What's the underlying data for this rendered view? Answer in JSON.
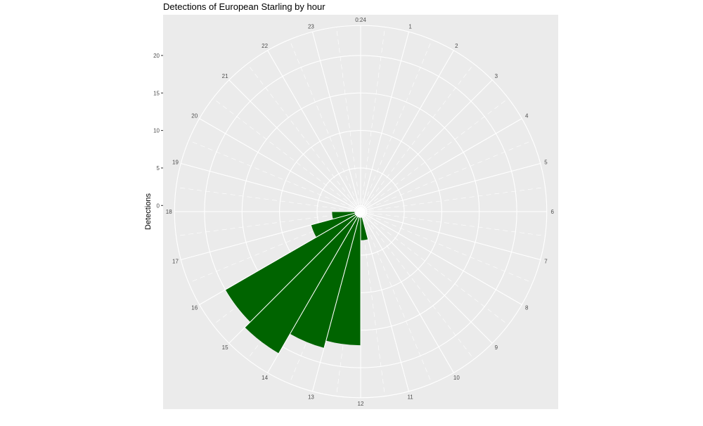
{
  "chart_data": {
    "type": "bar",
    "coordinate_system": "polar",
    "title": "Detections of European Starling by hour",
    "xlabel": "",
    "ylabel": "Detections",
    "x_tick_labels": [
      "0:24",
      "1",
      "2",
      "3",
      "4",
      "5",
      "6",
      "7",
      "8",
      "9",
      "10",
      "11",
      "12",
      "13",
      "14",
      "15",
      "16",
      "17",
      "18",
      "19",
      "20",
      "21",
      "22",
      "23"
    ],
    "y_ticks": [
      0,
      5,
      10,
      15,
      20
    ],
    "ylim": [
      0,
      24
    ],
    "categories": [
      0,
      1,
      2,
      3,
      4,
      5,
      6,
      7,
      8,
      9,
      10,
      11,
      12,
      13,
      14,
      15,
      16,
      17,
      18,
      19,
      20,
      21,
      22,
      23
    ],
    "values": [
      0,
      0,
      0,
      0,
      0,
      0,
      0,
      0,
      0,
      0,
      0,
      3,
      17,
      18,
      21,
      20,
      6,
      3,
      0,
      0,
      0,
      0,
      0,
      0
    ],
    "bar_color": "#006400",
    "panel_background": "#ebebeb",
    "grid_color": "#ffffff",
    "grid": true,
    "legend": "none"
  }
}
